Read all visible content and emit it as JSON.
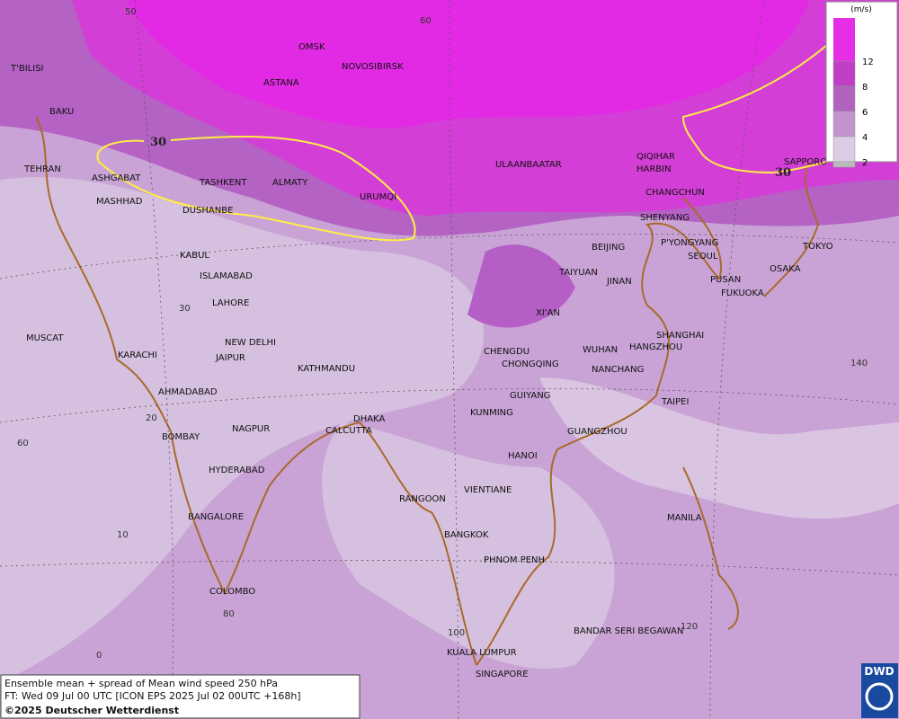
{
  "map": {
    "cities": [
      "OMSK",
      "NOVOSIBIRSK",
      "ASTANA",
      "T'BILISI",
      "BAKU",
      "TEHRAN",
      "ASHGABAT",
      "MASHHAD",
      "TASHKENT",
      "ALMATY",
      "DUSHANBE",
      "URUMQI",
      "ULAANBAATAR",
      "QIQIHAR",
      "HARBIN",
      "CHANGCHUN",
      "SHENYANG",
      "BEIJING",
      "P'YONGYANG",
      "SEOUL",
      "TOKYO",
      "SAPPORO",
      "OSAKA",
      "PUSAN",
      "FUKUOKA",
      "TAIYUAN",
      "JINAN",
      "XI'AN",
      "KABUL",
      "ISLAMABAD",
      "LAHORE",
      "NEW DELHI",
      "JAIPUR",
      "MUSCAT",
      "KARACHI",
      "AHMADABAD",
      "KATHMANDU",
      "CHENGDU",
      "CHONGQING",
      "WUHAN",
      "SHANGHAI",
      "HANGZHOU",
      "NANCHANG",
      "TAIPEI",
      "GUIYANG",
      "KUNMING",
      "GUANGZHOU",
      "DHAKA",
      "CALCUTTA",
      "NAGPUR",
      "BOMBAY",
      "HYDERABAD",
      "HANOI",
      "VIENTIANE",
      "RANGOON",
      "BANGALORE",
      "MANILA",
      "BANGKOK",
      "PHNOM PENH",
      "COLOMBO",
      "BANDAR SERI BEGAWAN",
      "KUALA LUMPUR",
      "SINGAPORE"
    ],
    "grid_labels": [
      "50",
      "60",
      "30",
      "20",
      "60",
      "10",
      "0",
      "80",
      "100",
      "120",
      "140"
    ],
    "contour_labels": [
      "30",
      "30"
    ],
    "legend": {
      "unit": "(m/s)",
      "levels": [
        {
          "value": 12,
          "color": "#c03fc4"
        },
        {
          "value": 8,
          "color": "#b062bd"
        },
        {
          "value": 6,
          "color": "#c294cd"
        },
        {
          "value": 4,
          "color": "#dccbe4"
        },
        {
          "value": 2,
          "color": "#bbbbbb"
        }
      ],
      "top_color": "#e62ee6"
    },
    "info": {
      "line1": "Ensemble mean + spread of Mean wind speed 250 hPa",
      "line2": "FT: Wed 09 Jul 00 UTC [ICON EPS 2025 Jul 02 00UTC +168h]",
      "line3": "©2025 Deutscher Wetterdienst"
    },
    "logo": "DWD"
  }
}
